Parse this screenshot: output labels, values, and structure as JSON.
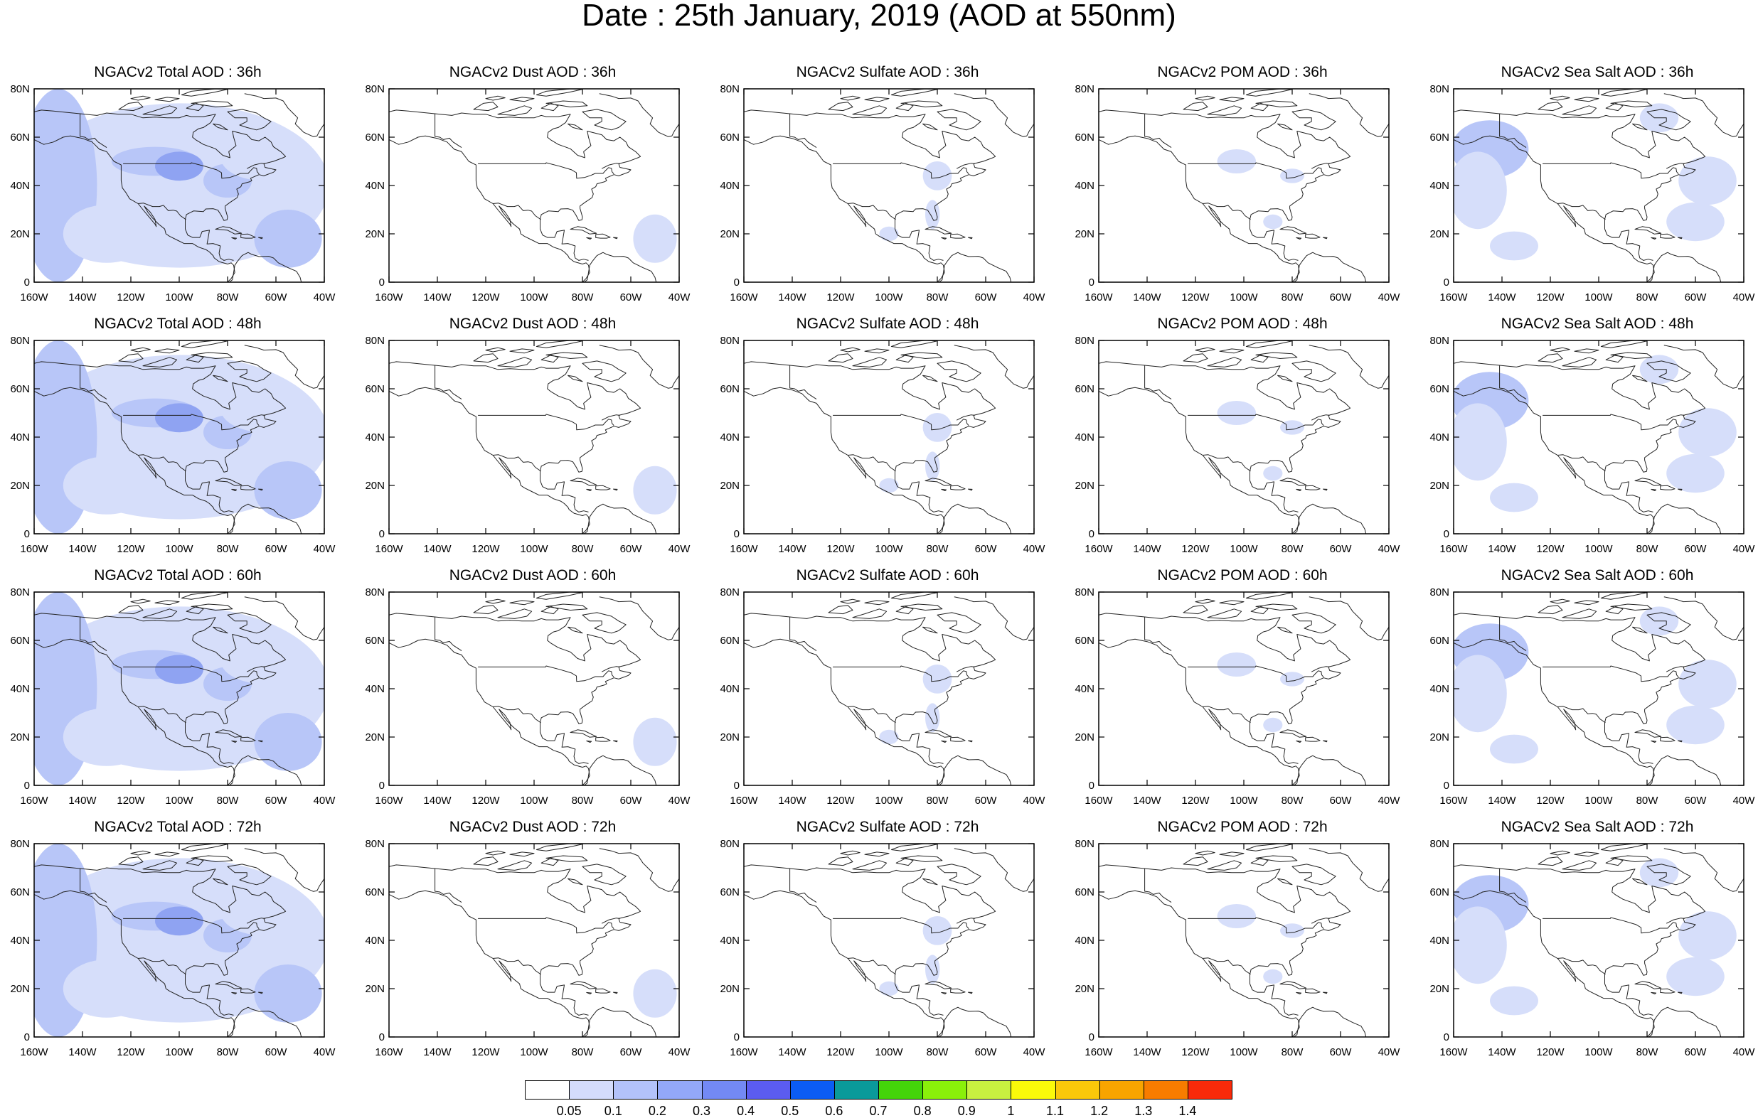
{
  "title": "Date : 25th January, 2019 (AOD at 550nm)",
  "lat_labels": [
    "80N",
    "60N",
    "40N",
    "20N",
    "0"
  ],
  "lon_labels": [
    "160W",
    "140W",
    "120W",
    "100W",
    "80W",
    "60W",
    "40W"
  ],
  "panels": [
    {
      "title": "NGACv2 Total AOD : 36h",
      "species": "total",
      "forecast_hour": "36h"
    },
    {
      "title": "NGACv2 Dust AOD : 36h",
      "species": "dust",
      "forecast_hour": "36h"
    },
    {
      "title": "NGACv2 Sulfate AOD : 36h",
      "species": "sulfate",
      "forecast_hour": "36h"
    },
    {
      "title": "NGACv2 POM AOD : 36h",
      "species": "pom",
      "forecast_hour": "36h"
    },
    {
      "title": "NGACv2 Sea Salt AOD : 36h",
      "species": "seasalt",
      "forecast_hour": "36h"
    },
    {
      "title": "NGACv2 Total AOD : 48h",
      "species": "total",
      "forecast_hour": "48h"
    },
    {
      "title": "NGACv2 Dust AOD : 48h",
      "species": "dust",
      "forecast_hour": "48h"
    },
    {
      "title": "NGACv2 Sulfate AOD : 48h",
      "species": "sulfate",
      "forecast_hour": "48h"
    },
    {
      "title": "NGACv2 POM AOD : 48h",
      "species": "pom",
      "forecast_hour": "48h"
    },
    {
      "title": "NGACv2 Sea Salt AOD : 48h",
      "species": "seasalt",
      "forecast_hour": "48h"
    },
    {
      "title": "NGACv2 Total AOD : 60h",
      "species": "total",
      "forecast_hour": "60h"
    },
    {
      "title": "NGACv2 Dust AOD : 60h",
      "species": "dust",
      "forecast_hour": "60h"
    },
    {
      "title": "NGACv2 Sulfate AOD : 60h",
      "species": "sulfate",
      "forecast_hour": "60h"
    },
    {
      "title": "NGACv2 POM AOD : 60h",
      "species": "pom",
      "forecast_hour": "60h"
    },
    {
      "title": "NGACv2 Sea Salt AOD : 60h",
      "species": "seasalt",
      "forecast_hour": "60h"
    },
    {
      "title": "NGACv2 Total AOD : 72h",
      "species": "total",
      "forecast_hour": "72h"
    },
    {
      "title": "NGACv2 Dust AOD : 72h",
      "species": "dust",
      "forecast_hour": "72h"
    },
    {
      "title": "NGACv2 Sulfate AOD : 72h",
      "species": "sulfate",
      "forecast_hour": "72h"
    },
    {
      "title": "NGACv2 POM AOD : 72h",
      "species": "pom",
      "forecast_hour": "72h"
    },
    {
      "title": "NGACv2 Sea Salt  AOD : 72h",
      "species": "seasalt",
      "forecast_hour": "72h"
    }
  ],
  "colorbar": {
    "labels": [
      "0.05",
      "0.1",
      "0.2",
      "0.3",
      "0.4",
      "0.5",
      "0.6",
      "0.7",
      "0.8",
      "0.9",
      "1",
      "1.1",
      "1.2",
      "1.3",
      "1.4"
    ],
    "colors": [
      "#ffffff",
      "#d4dcfc",
      "#b3c2fa",
      "#93a8f8",
      "#7389f4",
      "#5b5cf0",
      "#0b5cf4",
      "#0a9a9a",
      "#44d40a",
      "#8af00a",
      "#c8f040",
      "#fafa0a",
      "#fac80a",
      "#f8a400",
      "#f87c00",
      "#f82a0a"
    ]
  },
  "shading": {
    "light": "#d6defa",
    "medium": "#b8c6f8",
    "strong": "#8fa3f2"
  }
}
